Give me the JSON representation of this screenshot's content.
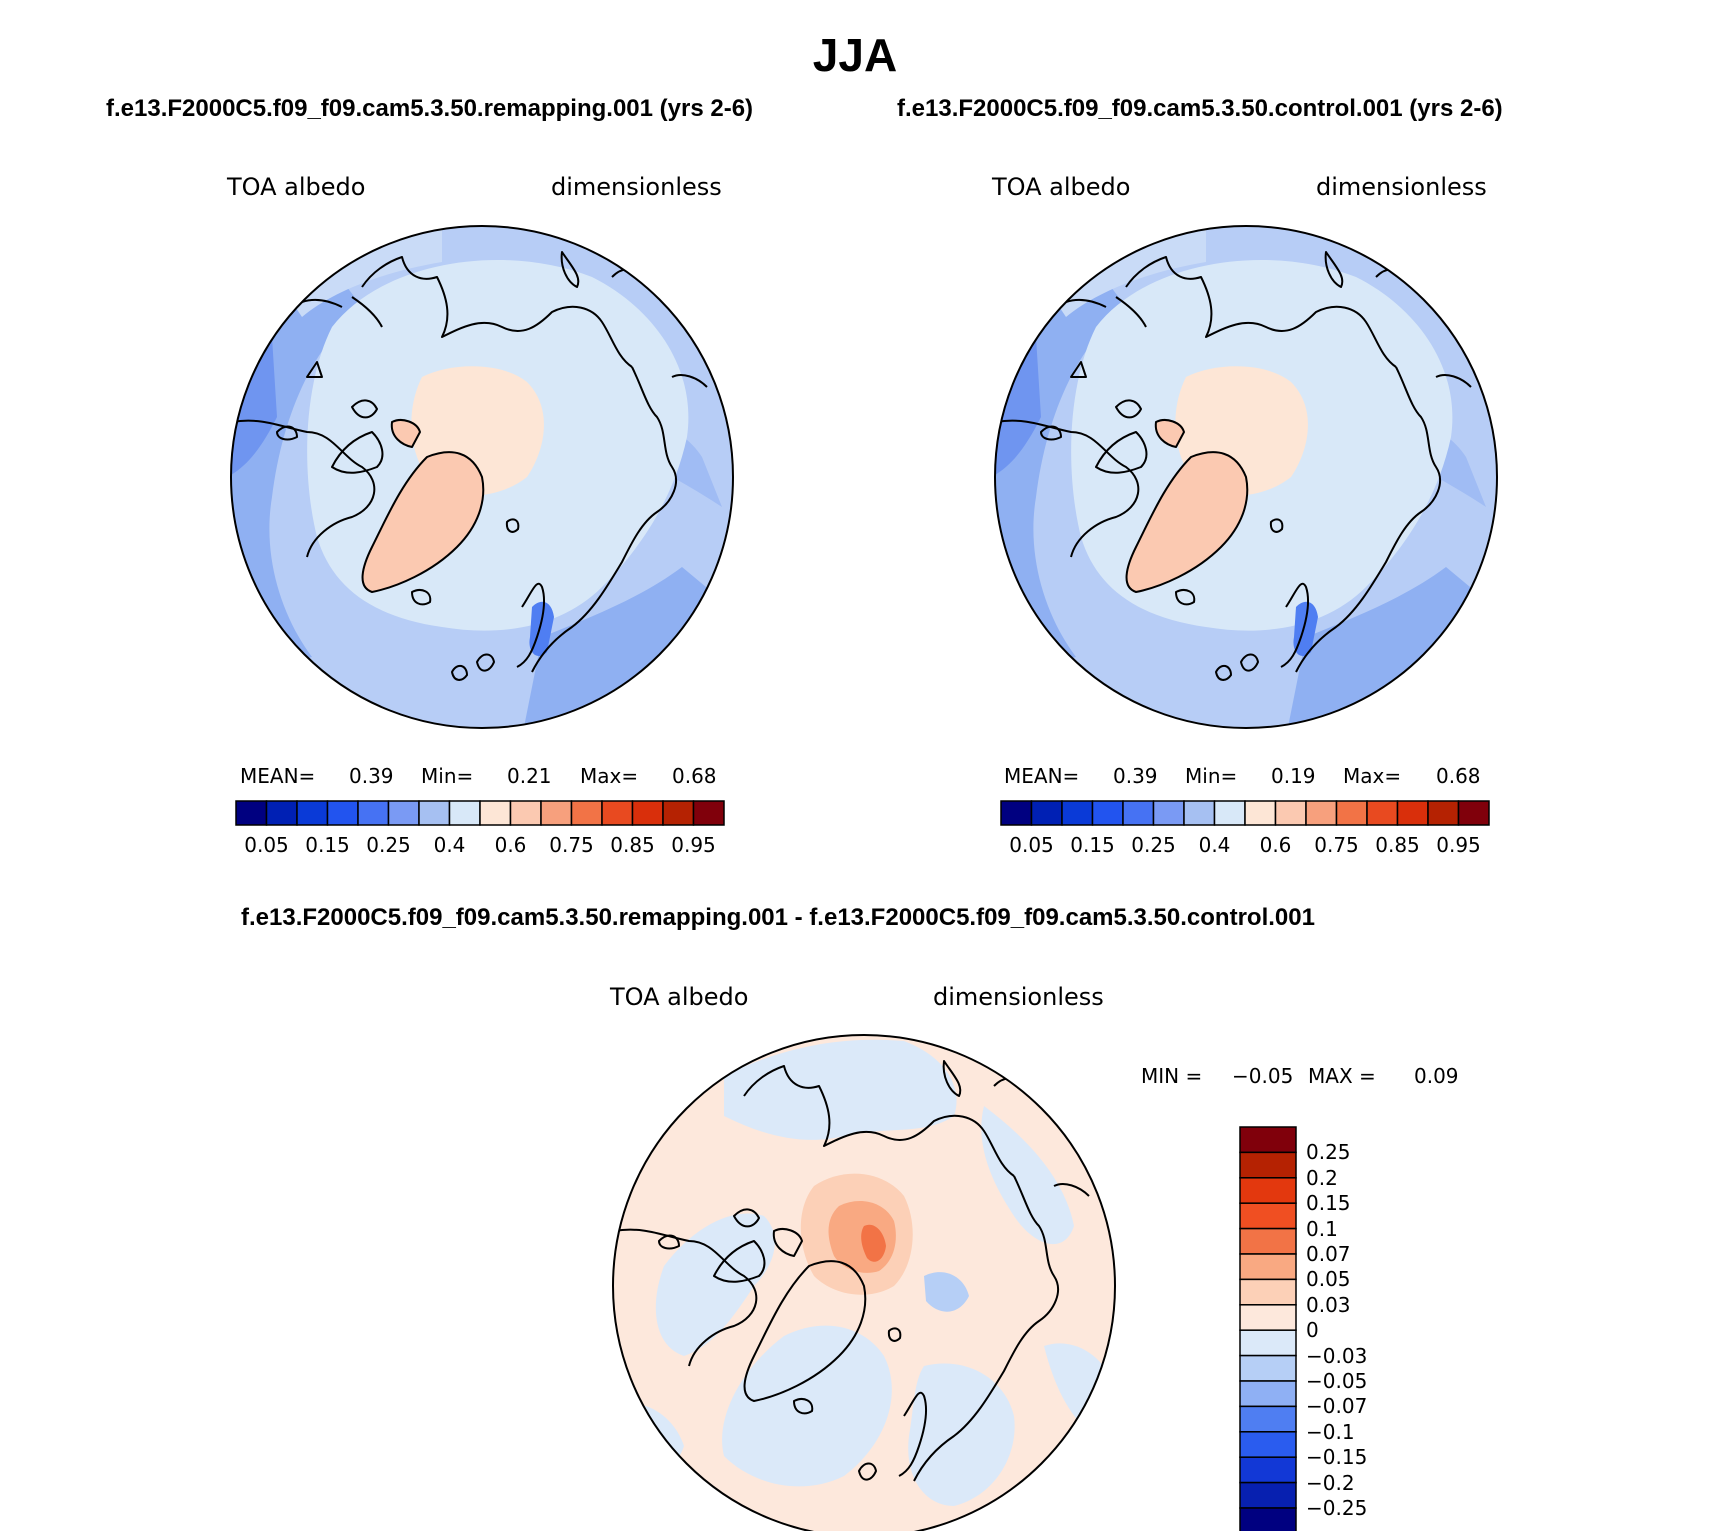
{
  "figure_title": "JJA",
  "panels": [
    {
      "case_title": "f.e13.F2000C5.f09_f09.cam5.3.50.remapping.001 (yrs 2-6)",
      "variable": "TOA albedo",
      "units": "dimensionless",
      "stats": {
        "mean_label": "MEAN=",
        "mean": "0.39",
        "min_label": "Min=",
        "min": "0.21",
        "max_label": "Max=",
        "max": "0.68"
      }
    },
    {
      "case_title": "f.e13.F2000C5.f09_f09.cam5.3.50.control.001 (yrs 2-6)",
      "variable": "TOA albedo",
      "units": "dimensionless",
      "stats": {
        "mean_label": "MEAN=",
        "mean": "0.39",
        "min_label": "Min=",
        "min": "0.19",
        "max_label": "Max=",
        "max": "0.68"
      }
    }
  ],
  "abs_colorbar": {
    "colors": [
      "#000080",
      "#0020b4",
      "#0a3ad7",
      "#2254ef",
      "#4672f3",
      "#7a9af4",
      "#a6c0f2",
      "#d8e8f8",
      "#fde6d6",
      "#fbc9b1",
      "#f7a07d",
      "#f27346",
      "#e84a20",
      "#d92f0b",
      "#b52202",
      "#80000b"
    ],
    "labels": [
      "0.05",
      "0.15",
      "0.25",
      "0.4",
      "0.6",
      "0.75",
      "0.85",
      "0.95"
    ]
  },
  "diff_panel": {
    "title": "f.e13.F2000C5.f09_f09.cam5.3.50.remapping.001 - f.e13.F2000C5.f09_f09.cam5.3.50.control.001",
    "variable": "TOA albedo",
    "units": "dimensionless",
    "min_label": "MIN =",
    "min": "−0.05",
    "max_label": "MAX =",
    "max": "0.09"
  },
  "diff_colorbar": {
    "colors_top_to_bottom": [
      "#80000b",
      "#b52202",
      "#e3380e",
      "#f04f22",
      "#f27346",
      "#f9a982",
      "#fcd0b7",
      "#fde8dc",
      "#dbe9f9",
      "#b6cff6",
      "#8fb0f4",
      "#4f7ef2",
      "#2a5cef",
      "#1238d6",
      "#0720b0",
      "#000080"
    ],
    "labels_top_to_bottom": [
      "0.25",
      "0.2",
      "0.15",
      "0.1",
      "0.07",
      "0.05",
      "0.03",
      "0",
      "−0.03",
      "−0.05",
      "−0.07",
      "−0.1",
      "−0.15",
      "−0.2",
      "−0.25"
    ]
  }
}
